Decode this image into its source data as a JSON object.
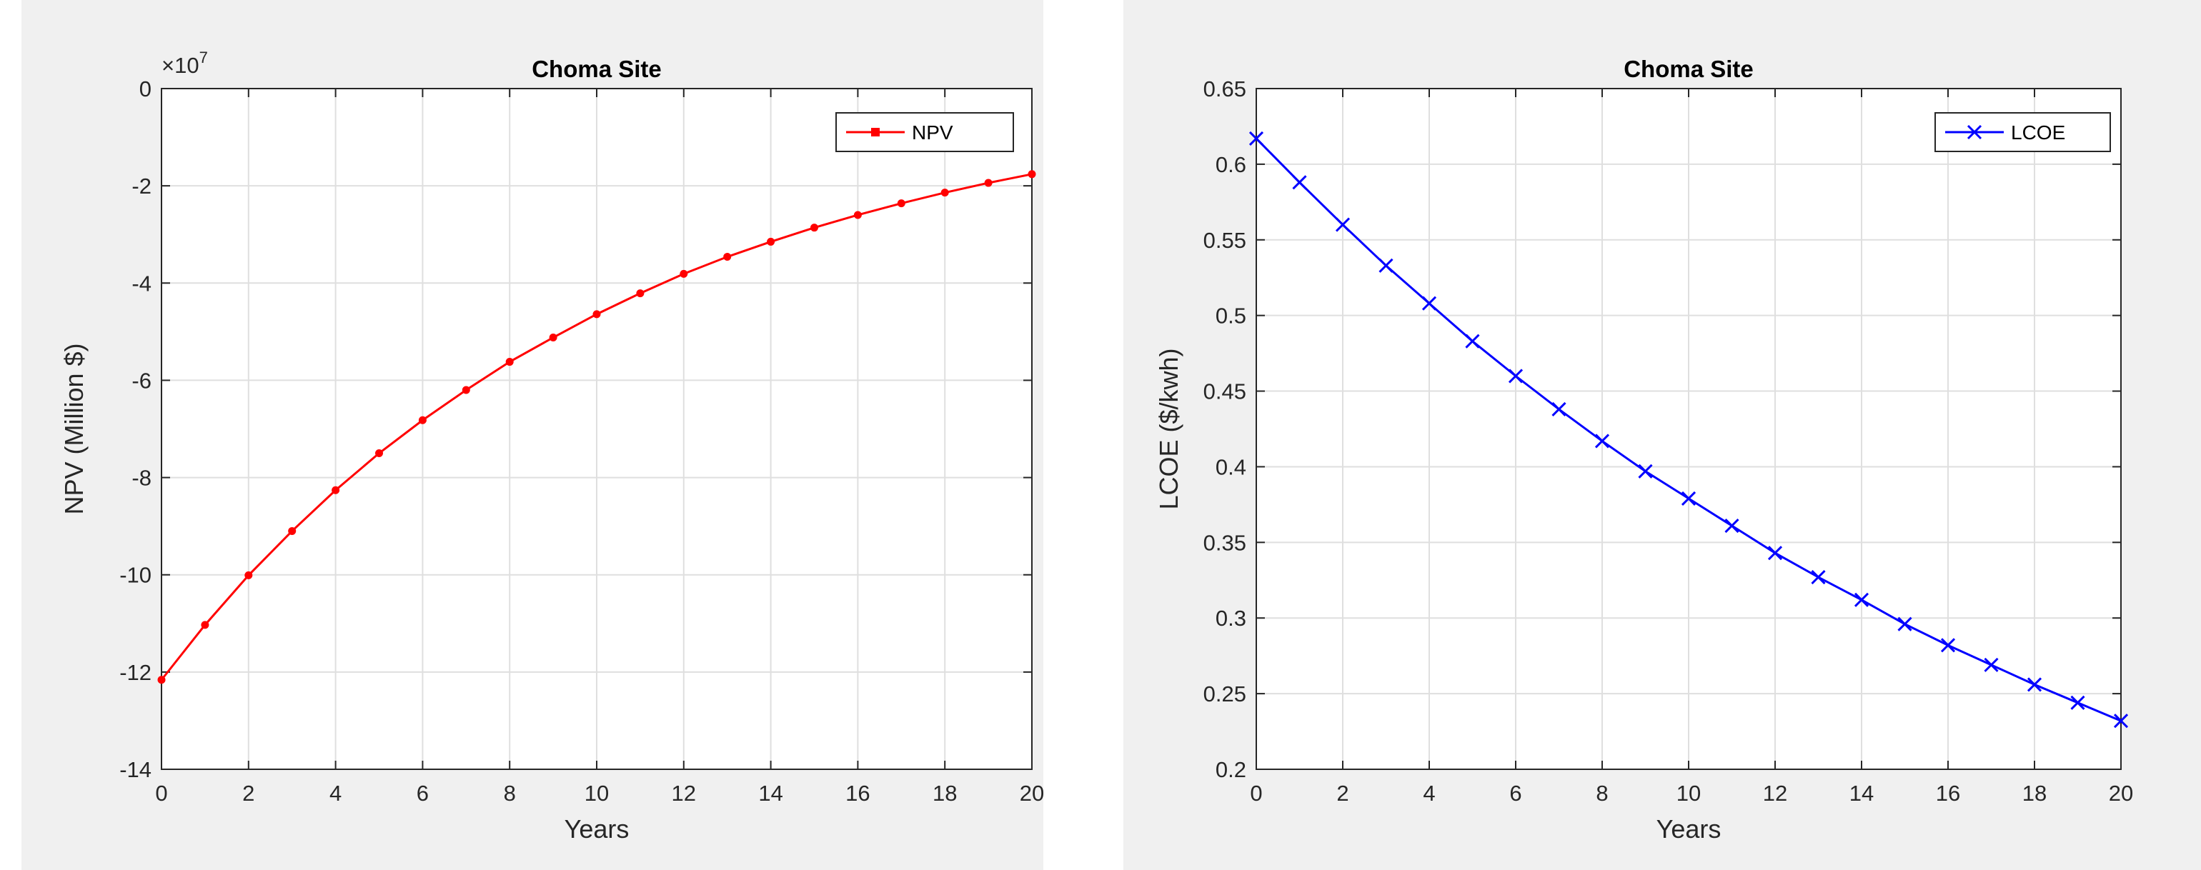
{
  "chart_data": [
    {
      "type": "line",
      "title": "Choma Site",
      "xlabel": "Years",
      "ylabel": "NPV (Million $)",
      "y_exponent_label": "×10",
      "y_exponent": "7",
      "xlim": [
        0,
        20
      ],
      "ylim": [
        -140000000,
        0
      ],
      "x_ticks": [
        0,
        2,
        4,
        6,
        8,
        10,
        12,
        14,
        16,
        18,
        20
      ],
      "y_ticks": [
        0,
        -20000000,
        -40000000,
        -60000000,
        -80000000,
        -100000000,
        -120000000,
        -140000000
      ],
      "y_tick_labels": [
        "0",
        "-2",
        "-4",
        "-6",
        "-8",
        "-10",
        "-12",
        "-14"
      ],
      "grid": true,
      "legend_position": "top-right",
      "series": [
        {
          "name": "NPV",
          "color": "#ff0000",
          "marker": "dot",
          "x": [
            0,
            1,
            2,
            3,
            4,
            5,
            6,
            7,
            8,
            9,
            10,
            11,
            12,
            13,
            14,
            15,
            16,
            17,
            18,
            19,
            20
          ],
          "values": [
            -121600000,
            -110300000,
            -100100000,
            -91000000,
            -82600000,
            -75000000,
            -68200000,
            -62000000,
            -56200000,
            -51200000,
            -46400000,
            -42100000,
            -38100000,
            -34600000,
            -31500000,
            -28600000,
            -26000000,
            -23600000,
            -21400000,
            -19400000,
            -17600000
          ]
        }
      ]
    },
    {
      "type": "line",
      "title": "Choma Site",
      "xlabel": "Years",
      "ylabel": "LCOE ($/kwh)",
      "xlim": [
        0,
        20
      ],
      "ylim": [
        0.2,
        0.65
      ],
      "x_ticks": [
        0,
        2,
        4,
        6,
        8,
        10,
        12,
        14,
        16,
        18,
        20
      ],
      "y_ticks": [
        0.2,
        0.25,
        0.3,
        0.35,
        0.4,
        0.45,
        0.5,
        0.55,
        0.6,
        0.65
      ],
      "y_tick_labels": [
        "0.2",
        "0.25",
        "0.3",
        "0.35",
        "0.4",
        "0.45",
        "0.5",
        "0.55",
        "0.6",
        "0.65"
      ],
      "grid": true,
      "legend_position": "top-right",
      "series": [
        {
          "name": "LCOE",
          "color": "#0000ff",
          "marker": "x",
          "x": [
            0,
            1,
            2,
            3,
            4,
            5,
            6,
            7,
            8,
            9,
            10,
            11,
            12,
            13,
            14,
            15,
            16,
            17,
            18,
            19,
            20
          ],
          "values": [
            0.617,
            0.588,
            0.56,
            0.533,
            0.508,
            0.483,
            0.46,
            0.438,
            0.417,
            0.397,
            0.379,
            0.361,
            0.343,
            0.327,
            0.312,
            0.296,
            0.282,
            0.269,
            0.256,
            0.244,
            0.232
          ]
        }
      ]
    }
  ]
}
